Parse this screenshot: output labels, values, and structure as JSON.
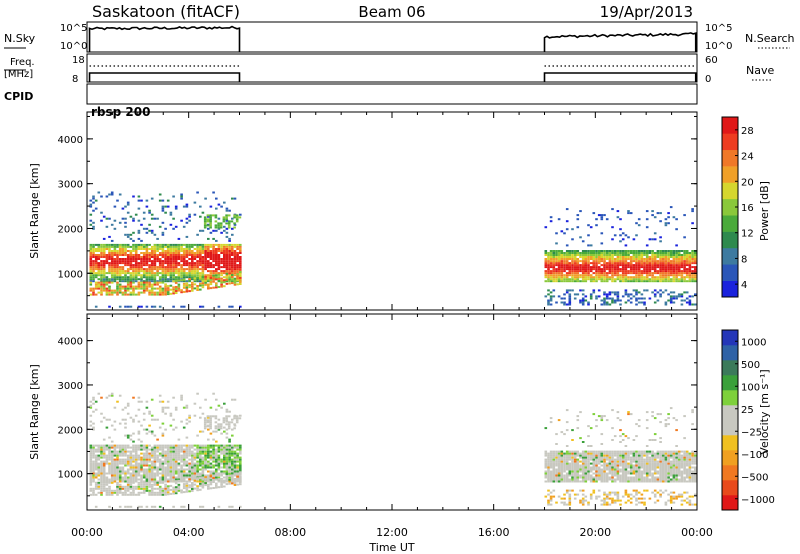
{
  "header": {
    "station": "Saskatoon (fitACF)",
    "beam": "Beam 06",
    "date": "19/Apr/2013"
  },
  "status_panels": {
    "nsky_label": "N.Sky",
    "nsky_ticks": [
      "10^5",
      "10^0"
    ],
    "nsearch_label": "N.Search",
    "nsearch_ticks": [
      "10^5",
      "10^0"
    ],
    "freq_label_line1": "Freq.",
    "freq_label_line2": "[MHz]",
    "freq_ticks": [
      "18",
      "8"
    ],
    "nave_label": "Nave",
    "nave_ticks": [
      "60",
      "0"
    ],
    "cpid_label": "CPID",
    "cpid_value": "rbsp 200"
  },
  "chart_data": [
    {
      "type": "heatmap",
      "name": "Power",
      "ylabel": "Slant Range [km]",
      "yticks": [
        "1000",
        "2000",
        "3000",
        "4000"
      ],
      "ylim": [
        180,
        4600
      ],
      "xlim_hours": [
        0,
        24
      ],
      "colorbar": {
        "label": "Power [dB]",
        "ticks": [
          "4",
          "8",
          "12",
          "16",
          "20",
          "24",
          "28"
        ],
        "colors": [
          "#1a22dd",
          "#2a56b8",
          "#3d7aa0",
          "#2e8a4e",
          "#4aaa3a",
          "#8ac83a",
          "#d6d62e",
          "#f0a028",
          "#f07828",
          "#ee3c20",
          "#e01818"
        ]
      },
      "data_intervals_hours": [
        [
          0.1,
          6.0
        ],
        [
          18.0,
          23.95
        ]
      ]
    },
    {
      "type": "heatmap",
      "name": "Velocity",
      "ylabel": "Slant Range [km]",
      "yticks": [
        "1000",
        "2000",
        "3000",
        "4000"
      ],
      "ylim": [
        180,
        4600
      ],
      "xlim_hours": [
        0,
        24
      ],
      "colorbar": {
        "label": "Velocity [m s⁻¹]",
        "ticks": [
          "1000",
          "500",
          "100",
          "25",
          "−25",
          "−100",
          "−500",
          "−1000"
        ],
        "colors": [
          "#2436b8",
          "#2f62a6",
          "#3b7a5a",
          "#3aa03a",
          "#7ed03a",
          "#c8c8c0",
          "#c8c8c0",
          "#f0c020",
          "#f0a020",
          "#f07820",
          "#e84a1c",
          "#e01818"
        ]
      },
      "data_intervals_hours": [
        [
          0.1,
          6.0
        ],
        [
          18.0,
          23.95
        ]
      ]
    }
  ],
  "xaxis": {
    "ticks": [
      "00:00",
      "04:00",
      "08:00",
      "12:00",
      "16:00",
      "20:00",
      "00:00"
    ],
    "label": "Time UT"
  }
}
